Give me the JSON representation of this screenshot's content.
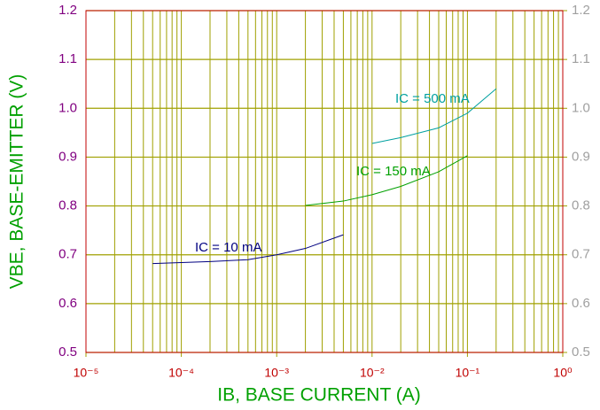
{
  "chart_data": {
    "type": "line",
    "xlabel": "IB, BASE CURRENT  (A)",
    "ylabel": "VBE, BASE-EMITTER  (V)",
    "xscale": "log",
    "xlim": [
      1e-05,
      1
    ],
    "xticks": [
      {
        "value": 1e-05,
        "label": "10⁻⁵"
      },
      {
        "value": 0.0001,
        "label": "10⁻⁴"
      },
      {
        "value": 0.001,
        "label": "10⁻³"
      },
      {
        "value": 0.01,
        "label": "10⁻²"
      },
      {
        "value": 0.1,
        "label": "10⁻¹"
      },
      {
        "value": 1,
        "label": "10⁰"
      }
    ],
    "xminorticks": [
      2e-05,
      3e-05,
      4e-05,
      5e-05,
      6e-05,
      7e-05,
      8e-05,
      9e-05,
      0.0002,
      0.0003,
      0.0004,
      0.0005,
      0.0006,
      0.0007,
      0.0008,
      0.0009,
      0.002,
      0.003,
      0.004,
      0.005,
      0.006,
      0.007,
      0.008,
      0.009,
      0.02,
      0.03,
      0.04,
      0.05,
      0.06,
      0.07,
      0.08,
      0.09,
      0.2,
      0.3,
      0.4,
      0.5,
      0.6,
      0.7,
      0.8,
      0.9
    ],
    "ylim": [
      0.5,
      1.2
    ],
    "yticks": [
      0.5,
      0.6,
      0.7,
      0.8,
      0.9,
      {
        "value": 1.0,
        "label": "1.0"
      },
      1.1,
      1.2
    ],
    "y2lim": [
      0.5,
      1.2
    ],
    "y2ticks": [
      0.5,
      0.6,
      0.7,
      0.8,
      0.9,
      {
        "value": 1.0,
        "label": "1.0"
      },
      1.1,
      1.2
    ],
    "grid": true,
    "series": [
      {
        "name": "IC = 10 mA",
        "color": "#000080",
        "x": [
          5e-05,
          0.0001,
          0.0002,
          0.0005,
          0.001,
          0.002,
          0.005
        ],
        "values": [
          0.682,
          0.684,
          0.686,
          0.69,
          0.7,
          0.713,
          0.741
        ]
      },
      {
        "name": "IC = 150 mA",
        "color": "#00a000",
        "x": [
          0.002,
          0.005,
          0.01,
          0.02,
          0.05,
          0.1
        ],
        "values": [
          0.801,
          0.81,
          0.823,
          0.84,
          0.87,
          0.903
        ]
      },
      {
        "name": "IC = 500 mA",
        "color": "#00a0a0",
        "x": [
          0.01,
          0.02,
          0.05,
          0.1,
          0.2
        ],
        "values": [
          0.928,
          0.94,
          0.96,
          0.99,
          1.04
        ]
      }
    ]
  }
}
